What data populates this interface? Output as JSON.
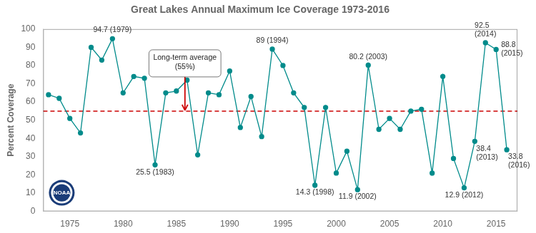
{
  "chart_data": {
    "type": "line",
    "title": "Great Lakes Annual Maximum Ice Coverage 1973-2016",
    "ylabel": "Percent Coverage",
    "x": [
      1973,
      1974,
      1975,
      1976,
      1977,
      1978,
      1979,
      1980,
      1981,
      1982,
      1983,
      1984,
      1985,
      1986,
      1987,
      1988,
      1989,
      1990,
      1991,
      1992,
      1993,
      1994,
      1995,
      1996,
      1997,
      1998,
      1999,
      2000,
      2001,
      2002,
      2003,
      2004,
      2005,
      2006,
      2007,
      2008,
      2009,
      2010,
      2011,
      2012,
      2013,
      2014,
      2015,
      2016
    ],
    "values": [
      64,
      62,
      51,
      43,
      90,
      83,
      94.7,
      65,
      74,
      73,
      25.5,
      65,
      66,
      72,
      31,
      65,
      64,
      77,
      46,
      63,
      41,
      89,
      80,
      65,
      57,
      14.3,
      57,
      21,
      33,
      11.9,
      80.2,
      45,
      51,
      45,
      55,
      56,
      21,
      74,
      29,
      12.9,
      38.4,
      92.5,
      88.8,
      33.8
    ],
    "color": "#008B8B",
    "marker": "circle",
    "xlim": [
      1972.5,
      2017.0
    ],
    "ylim": [
      0,
      100
    ],
    "xticks": [
      1975,
      1980,
      1985,
      1990,
      1995,
      2000,
      2005,
      2010,
      2015
    ],
    "yticks": [
      0,
      10,
      20,
      30,
      40,
      50,
      60,
      70,
      80,
      90,
      100
    ],
    "grid": false,
    "hlines": [
      {
        "y": 55,
        "label": "Long-term average\n(55%)",
        "color": "#cc0000",
        "line_style": "dashed"
      }
    ],
    "annotations": [
      {
        "text": "94.7 (1979)",
        "x": 1979,
        "y": 94.7
      },
      {
        "text": "25.5 (1983)",
        "x": 1983,
        "y": 25.5
      },
      {
        "text": "89 (1994)",
        "x": 1994,
        "y": 89
      },
      {
        "text": "14.3 (1998)",
        "x": 1998,
        "y": 14.3
      },
      {
        "text": "11.9 (2002)",
        "x": 2002,
        "y": 11.9
      },
      {
        "text": "80.2 (2003)",
        "x": 2003,
        "y": 80.2
      },
      {
        "text": "12.9 (2012)",
        "x": 2012,
        "y": 12.9
      },
      {
        "text": "38.4\n(2013)",
        "x": 2013,
        "y": 38.4
      },
      {
        "text": "92.5\n(2014)",
        "x": 2014,
        "y": 92.5
      },
      {
        "text": "88.8\n(2015)",
        "x": 2015,
        "y": 88.8
      },
      {
        "text": "33.8\n(2016)",
        "x": 2016,
        "y": 33.8
      },
      {
        "text": "NOAA",
        "color": "#1a3c78"
      }
    ]
  }
}
